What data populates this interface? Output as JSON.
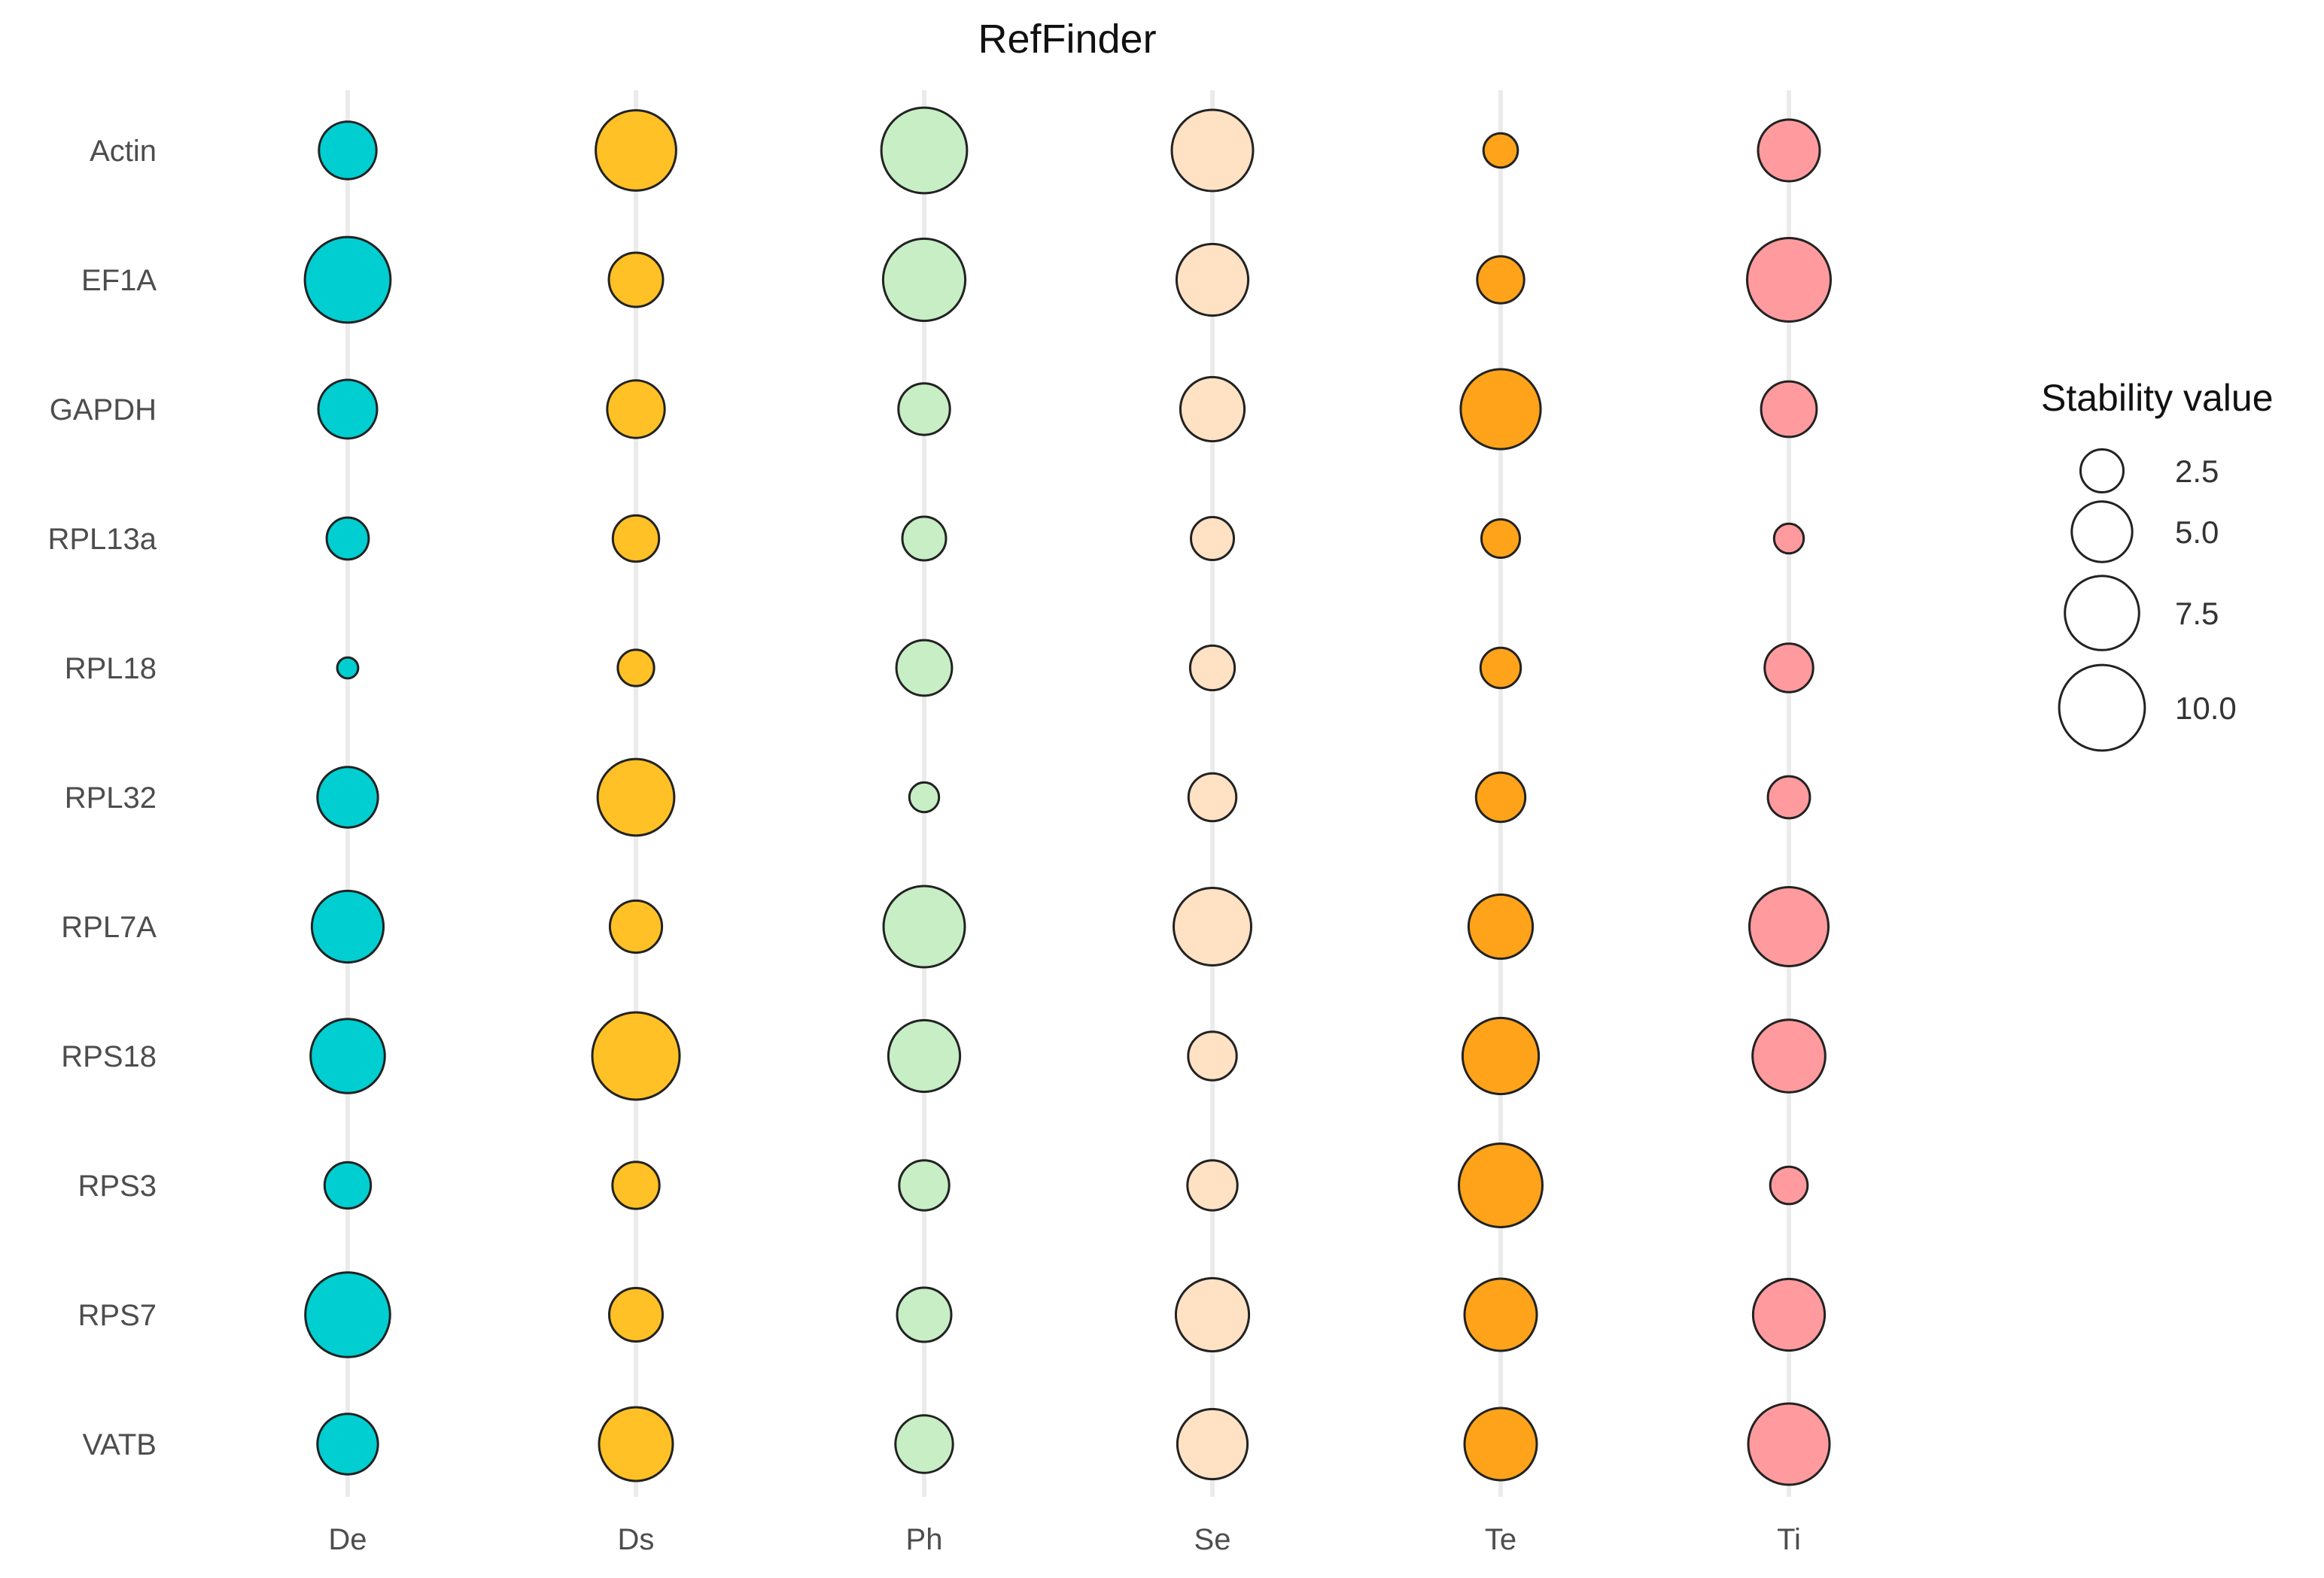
{
  "chart_data": {
    "type": "bubble",
    "title": "RefFinder",
    "x_categories": [
      "De",
      "Ds",
      "Ph",
      "Se",
      "Te",
      "Ti"
    ],
    "y_categories": [
      "Actin",
      "EF1A",
      "GAPDH",
      "RPL13a",
      "RPL18",
      "RPL32",
      "RPL7A",
      "RPS18",
      "RPS3",
      "RPS7",
      "VATB"
    ],
    "colors": {
      "De": "#00CED1",
      "Ds": "#FFC125",
      "Ph": "#C7EEC5",
      "Se": "#FFE1C4",
      "Te": "#FFA31A",
      "Ti": "#FF9B9E"
    },
    "values": {
      "De": [
        4.5,
        10.0,
        4.7,
        2.4,
        0.6,
        5.0,
        7.0,
        7.5,
        2.9,
        9.8,
        5.0
      ],
      "Ds": [
        8.8,
        4.0,
        4.5,
        2.9,
        1.8,
        8.0,
        3.7,
        10.4,
        3.0,
        3.9,
        7.4
      ],
      "Ph": [
        10.0,
        9.2,
        3.6,
        2.6,
        4.2,
        1.2,
        9.0,
        7.0,
        3.4,
        4.0,
        4.5
      ],
      "Se": [
        9.0,
        7.0,
        5.6,
        2.5,
        2.7,
        3.1,
        8.2,
        3.2,
        3.4,
        7.3,
        6.7
      ],
      "Te": [
        1.6,
        3.0,
        8.7,
        2.0,
        2.2,
        3.3,
        5.6,
        7.9,
        9.5,
        7.1,
        7.1
      ],
      "Ti": [
        5.2,
        9.5,
        4.2,
        1.2,
        3.2,
        2.4,
        8.5,
        7.2,
        1.9,
        7.0,
        9.0
      ]
    },
    "size_legend": {
      "title": "Stability value",
      "breaks": [
        2.5,
        5.0,
        7.5,
        10.0
      ],
      "labels": [
        "2.5",
        "5.0",
        "7.5",
        "10.0"
      ]
    },
    "grid": "vertical"
  }
}
